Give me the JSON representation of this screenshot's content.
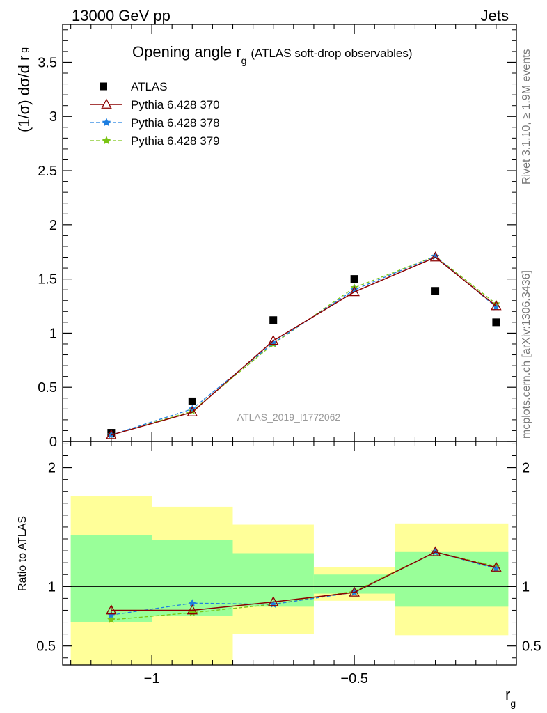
{
  "header": {
    "energy_label": "13000 GeV pp",
    "process_label": "Jets",
    "side_label_top": "Rivet 3.1.10, ≥ 1.9M events",
    "side_label_bottom": "mcplots.cern.ch [arXiv:1306.3436]"
  },
  "chart_data": [
    {
      "type": "scatter",
      "title_main": "Opening angle r",
      "title_sub": "g",
      "title_extra": "(ATLAS soft-drop observables)",
      "ylabel_main": "(1/σ) dσ/d r",
      "ylabel_sub": "g",
      "analysis_label": "ATLAS_2019_I1772062",
      "xlim": [
        -1.22,
        -0.1
      ],
      "ylim": [
        0,
        3.85
      ],
      "yticks": [
        0,
        0.5,
        1,
        1.5,
        2,
        2.5,
        3,
        3.5
      ],
      "ytick_labels": [
        "0",
        "0.5",
        "1",
        "1.5",
        "2",
        "2.5",
        "3",
        "3.5"
      ],
      "x": [
        -1.1,
        -0.9,
        -0.7,
        -0.5,
        -0.3,
        -0.15
      ],
      "series": [
        {
          "name": "ATLAS",
          "color": "#000000",
          "style": "data",
          "values": [
            0.08,
            0.37,
            1.12,
            1.5,
            1.39,
            1.1
          ]
        },
        {
          "name": "Pythia 6.428 370",
          "color": "#8b0000",
          "style": "triangle",
          "values": [
            0.06,
            0.27,
            0.93,
            1.38,
            1.7,
            1.25
          ]
        },
        {
          "name": "Pythia 6.428 378",
          "color": "#1f7fe0",
          "style": "star-dash",
          "values": [
            0.06,
            0.3,
            0.91,
            1.4,
            1.71,
            1.24
          ]
        },
        {
          "name": "Pythia 6.428 379",
          "color": "#7ac414",
          "style": "star-dash",
          "values": [
            0.06,
            0.28,
            0.9,
            1.42,
            1.71,
            1.27
          ]
        }
      ]
    },
    {
      "type": "line",
      "ylabel": "Ratio to ATLAS",
      "xlabel_main": "r",
      "xlabel_sub": "g",
      "xlim": [
        -1.22,
        -0.1
      ],
      "ylim": [
        0.34,
        2.22
      ],
      "xticks": [
        -1,
        -0.5
      ],
      "xtick_labels": [
        "−1",
        "−0.5"
      ],
      "yticks": [
        0.5,
        1,
        2
      ],
      "ytick_labels": [
        "0.5",
        "1",
        "2"
      ],
      "bins": [
        {
          "lo": -1.2,
          "hi": -1.0,
          "inner": [
            0.7,
            1.43
          ],
          "outer": [
            0.34,
            1.76
          ]
        },
        {
          "lo": -1.0,
          "hi": -0.8,
          "inner": [
            0.75,
            1.39
          ],
          "outer": [
            0.34,
            1.67
          ]
        },
        {
          "lo": -0.8,
          "hi": -0.6,
          "inner": [
            0.83,
            1.28
          ],
          "outer": [
            0.6,
            1.52
          ]
        },
        {
          "lo": -0.6,
          "hi": -0.4,
          "inner": [
            0.94,
            1.1
          ],
          "outer": [
            0.88,
            1.16
          ]
        },
        {
          "lo": -0.4,
          "hi": -0.12,
          "inner": [
            0.83,
            1.29
          ],
          "outer": [
            0.59,
            1.53
          ]
        }
      ],
      "x": [
        -1.1,
        -0.9,
        -0.7,
        -0.5,
        -0.3,
        -0.15
      ],
      "series": [
        {
          "name": "Pythia 6.428 370",
          "color": "#8b0000",
          "style": "triangle",
          "values": [
            0.8,
            0.8,
            0.87,
            0.95,
            1.29,
            1.16
          ]
        },
        {
          "name": "Pythia 6.428 378",
          "color": "#1f7fe0",
          "style": "star-dash",
          "values": [
            0.76,
            0.86,
            0.85,
            0.95,
            1.29,
            1.15
          ]
        },
        {
          "name": "Pythia 6.428 379",
          "color": "#7ac414",
          "style": "star-dash",
          "values": [
            0.72,
            0.78,
            0.85,
            0.96,
            1.29,
            1.17
          ]
        }
      ],
      "band_colors": {
        "inner": "#99ff99",
        "outer": "#ffff99"
      }
    }
  ]
}
